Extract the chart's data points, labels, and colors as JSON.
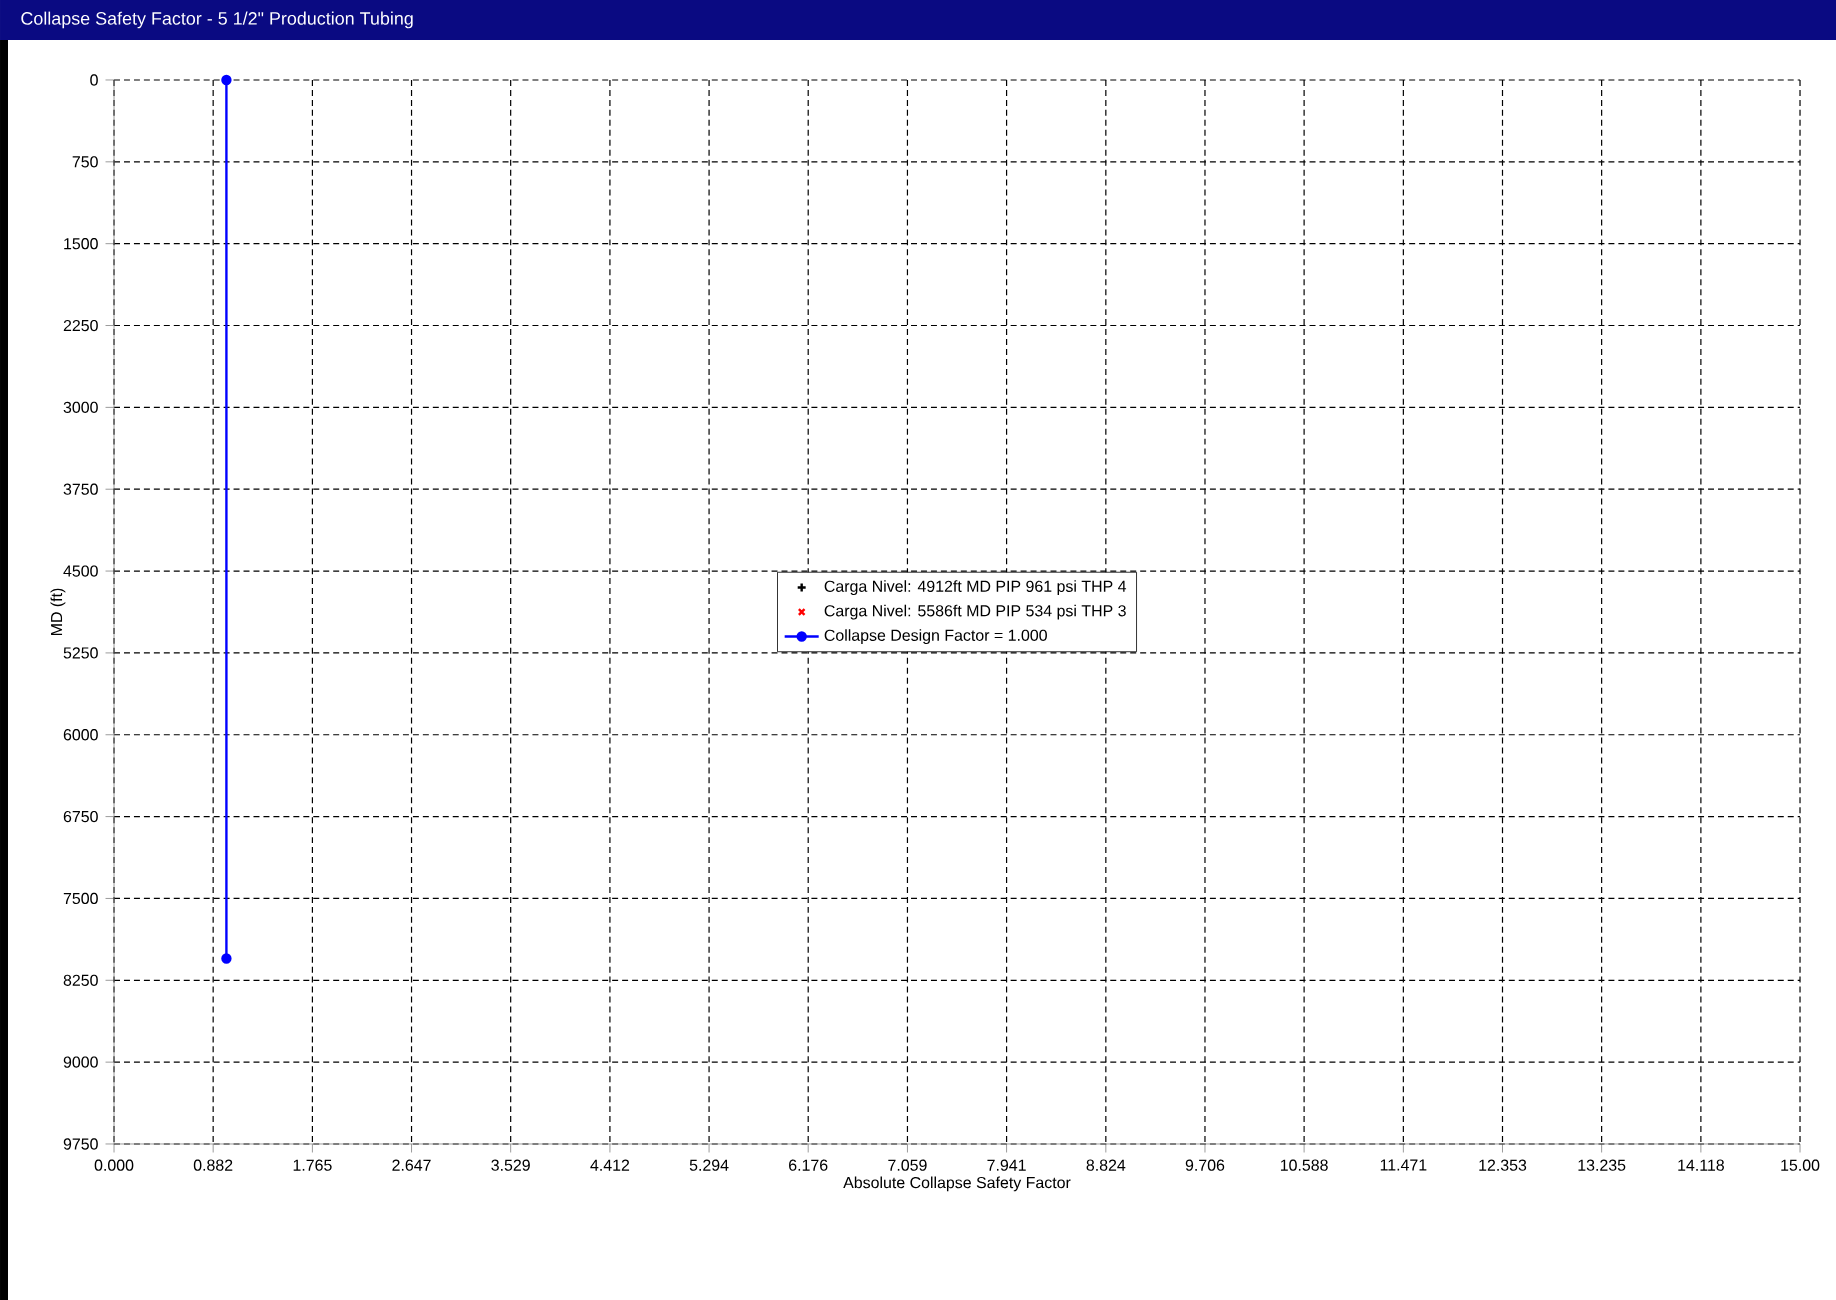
{
  "chart_data": {
    "type": "line",
    "title": "Collapse Safety Factor - 5 1/2\" Production Tubing",
    "xlabel": "Absolute Collapse Safety Factor",
    "ylabel": "MD (ft)",
    "xlim": [
      0,
      15
    ],
    "ylim": [
      9750,
      0
    ],
    "xticks": [
      {
        "value": 0,
        "label": "0.000"
      },
      0.882,
      1.765,
      2.647,
      3.529,
      4.412,
      5.294,
      6.176,
      7.059,
      7.941,
      8.824,
      9.706,
      10.588,
      11.471,
      12.353,
      13.235,
      14.118,
      {
        "value": 15,
        "label": "15.00"
      }
    ],
    "yticks": [
      0,
      750,
      1500,
      2250,
      3000,
      3750,
      4500,
      5250,
      6000,
      6750,
      7500,
      8250,
      9000,
      9750
    ],
    "grid": true,
    "legend": "center",
    "series": [
      {
        "name": "Carga Nivel: 4912ft MD PIP 961 psi THP 4",
        "color": "#000000",
        "type": "scatter",
        "marker": "plus",
        "x": [
          null
        ],
        "values": [
          null
        ]
      },
      {
        "name": "Carga Nivel: 5586ft MD PIP 534 psi THP 3",
        "color": "#ff0000",
        "type": "scatter",
        "marker": "cross",
        "x": [
          null
        ],
        "values": [
          null
        ]
      },
      {
        "name": "Collapse Design Factor = 1.000",
        "color": "#0000ff",
        "marker": "circle",
        "x": [
          1.0,
          1.0
        ],
        "values": [
          0,
          8050
        ]
      }
    ]
  }
}
